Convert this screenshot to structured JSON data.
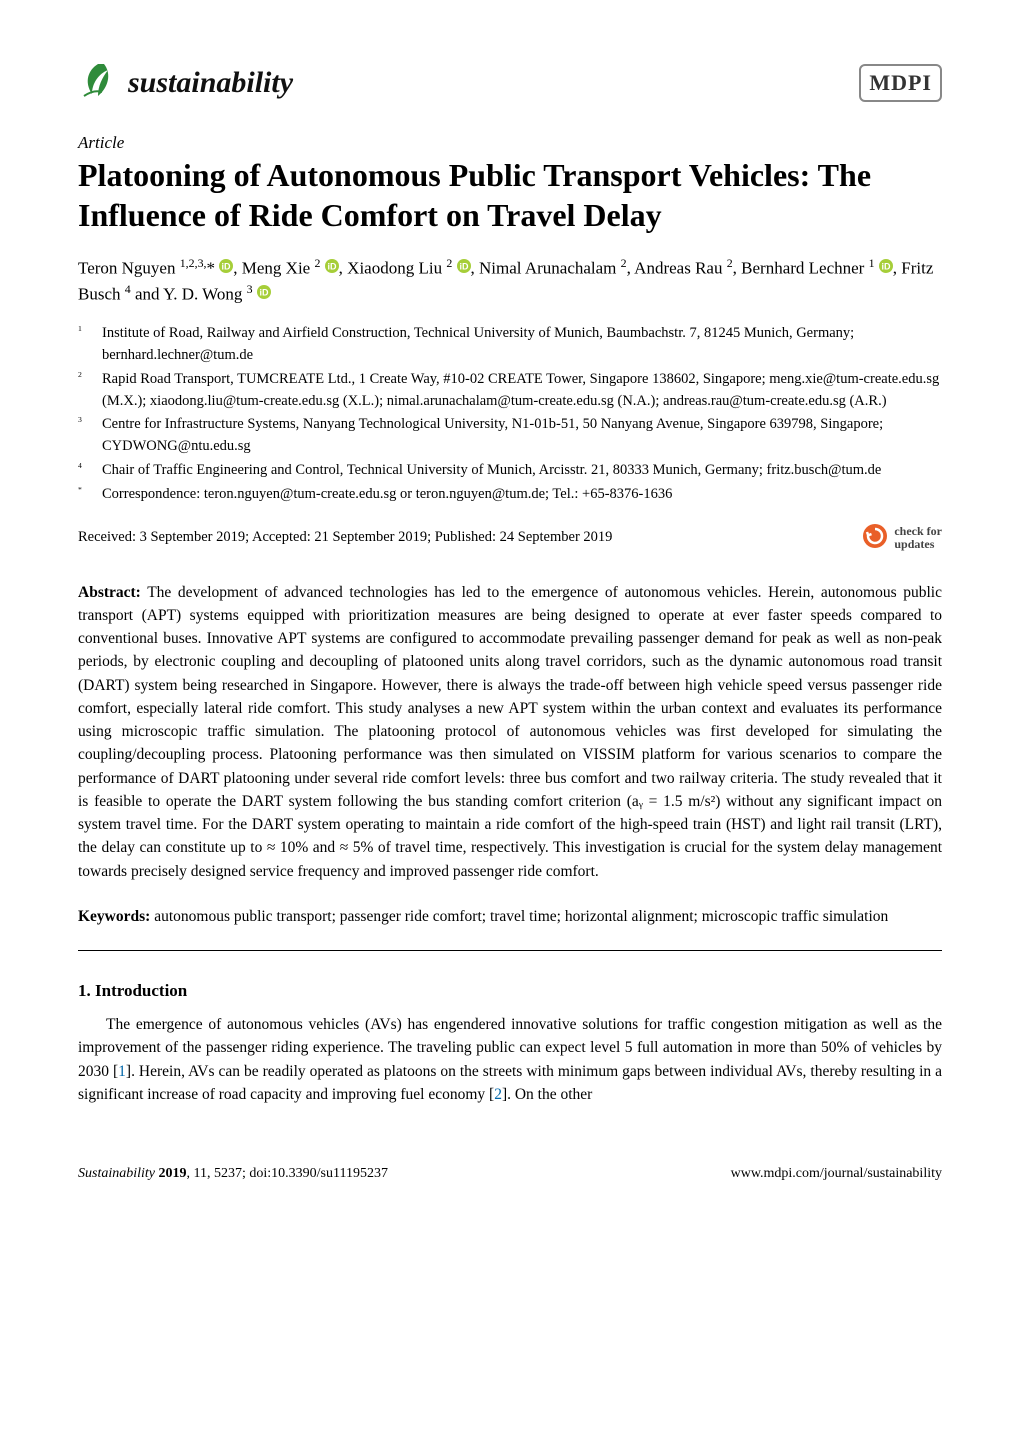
{
  "brand": {
    "journal_name": "sustainability",
    "journal_color": "#111111",
    "leaf_icon_color": "#2f8b3a",
    "publisher_logo_text": "MDPI"
  },
  "article_label": "Article",
  "title": "Platooning of Autonomous Public Transport Vehicles: The Influence of Ride Comfort on Travel Delay",
  "authors_html": "Teron Nguyen <sup>1,2,3,</sup>* <span class='orcid'></span>, Meng Xie <sup>2</sup> <span class='orcid'></span>, Xiaodong Liu <sup>2</sup> <span class='orcid'></span>, Nimal Arunachalam <sup>2</sup>, Andreas Rau <sup>2</sup>, Bernhard Lechner <sup>1</sup> <span class='orcid'></span>, Fritz Busch <sup>4</sup> and Y. D. Wong <sup>3</sup> <span class='orcid'></span>",
  "orcid": {
    "badge_color": "#A6CE39",
    "inner_text_color": "#ffffff"
  },
  "affiliations": [
    {
      "num": "1",
      "text": "Institute of Road, Railway and Airfield Construction, Technical University of Munich, Baumbachstr. 7, 81245 Munich, Germany; bernhard.lechner@tum.de"
    },
    {
      "num": "2",
      "text": "Rapid Road Transport, TUMCREATE Ltd., 1 Create Way, #10-02 CREATE Tower, Singapore 138602, Singapore; meng.xie@tum-create.edu.sg (M.X.); xiaodong.liu@tum-create.edu.sg (X.L.); nimal.arunachalam@tum-create.edu.sg (N.A.); andreas.rau@tum-create.edu.sg (A.R.)"
    },
    {
      "num": "3",
      "text": "Centre for Infrastructure Systems, Nanyang Technological University, N1-01b-51, 50 Nanyang Avenue, Singapore 639798, Singapore; CYDWONG@ntu.edu.sg"
    },
    {
      "num": "4",
      "text": "Chair of Traffic Engineering and Control, Technical University of Munich, Arcisstr. 21, 80333 Munich, Germany; fritz.busch@tum.de"
    },
    {
      "num": "*",
      "text": "Correspondence: teron.nguyen@tum-create.edu.sg or teron.nguyen@tum.de; Tel.: +65-8376-1636"
    }
  ],
  "dates": {
    "received": "Received: 3 September 2019;",
    "accepted": "Accepted: 21 September 2019;",
    "published": "Published: 24 September 2019"
  },
  "check_updates": {
    "line1": "check for",
    "line2": "updates",
    "icon_outer": "#e95f28",
    "icon_inner": "#ffffff"
  },
  "abstract_label": "Abstract:",
  "abstract_text": " The development of advanced technologies has led to the emergence of autonomous vehicles. Herein, autonomous public transport (APT) systems equipped with prioritization measures are being designed to operate at ever faster speeds compared to conventional buses. Innovative APT systems are configured to accommodate prevailing passenger demand for peak as well as non-peak periods, by electronic coupling and decoupling of platooned units along travel corridors, such as the dynamic autonomous road transit (DART) system being researched in Singapore. However, there is always the trade-off between high vehicle speed versus passenger ride comfort, especially lateral ride comfort. This study analyses a new APT system within the urban context and evaluates its performance using microscopic traffic simulation. The platooning protocol of autonomous vehicles was first developed for simulating the coupling/decoupling process. Platooning performance was then simulated on VISSIM platform for various scenarios to compare the performance of DART platooning under several ride comfort levels: three bus comfort and two railway criteria. The study revealed that it is feasible to operate the DART system following the bus standing comfort criterion (aᵧ = 1.5 m/s²) without any significant impact on system travel time. For the DART system operating to maintain a ride comfort of the high-speed train (HST) and light rail transit (LRT), the delay can constitute up to ≈ 10% and ≈ 5% of travel time, respectively. This investigation is crucial for the system delay management towards precisely designed service frequency and improved passenger ride comfort.",
  "keywords_label": "Keywords:",
  "keywords_text": " autonomous public transport; passenger ride comfort; travel time; horizontal alignment; microscopic traffic simulation",
  "section1": {
    "heading": "1. Introduction",
    "para1": "The emergence of autonomous vehicles (AVs) has engendered innovative solutions for traffic congestion mitigation as well as the improvement of the passenger riding experience. The traveling public can expect level 5 full automation in more than 50% of vehicles by 2030 [1]. Herein, AVs can be readily operated as platoons on the streets with minimum gaps between individual AVs, thereby resulting in a significant increase of road capacity and improving fuel economy [2]. On the other"
  },
  "footer": {
    "left_italic": "Sustainability ",
    "left_bold": "2019",
    "left_rest": ", 11, 5237; doi:10.3390/su11195237",
    "right": "www.mdpi.com/journal/sustainability"
  },
  "refs": {
    "r1": "1",
    "r2": "2"
  }
}
